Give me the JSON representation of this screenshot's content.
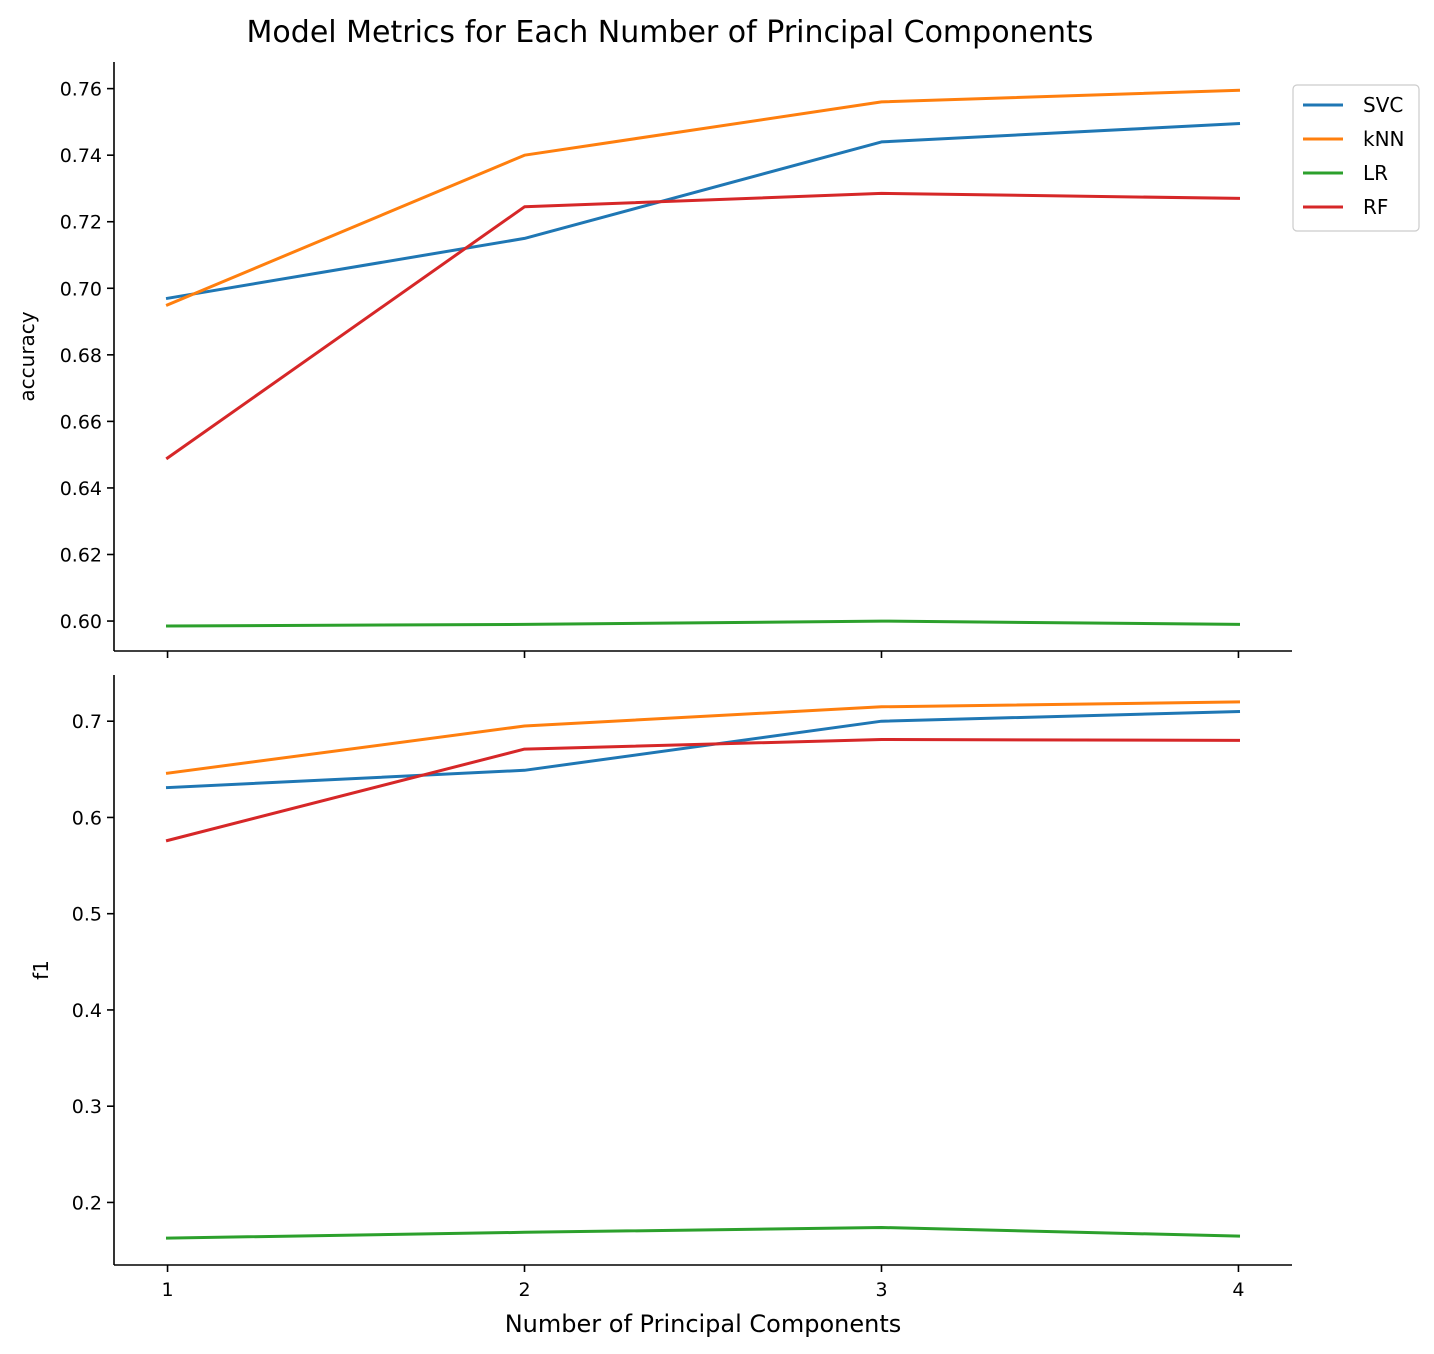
{
  "chart_data": {
    "type": "line",
    "title": "Model Metrics for Each Number of Principal Components",
    "xlabel": "Number of Principal Components",
    "x": [
      1,
      2,
      3,
      4
    ],
    "xticks": [
      "1",
      "2",
      "3",
      "4"
    ],
    "legend": {
      "position": "top-right"
    },
    "grid": false,
    "series_styles": [
      {
        "name": "SVC",
        "color": "#1f77b4"
      },
      {
        "name": "kNN",
        "color": "#ff7f0e"
      },
      {
        "name": "LR",
        "color": "#2ca02c"
      },
      {
        "name": "RF",
        "color": "#d62728"
      }
    ],
    "panels": [
      {
        "ylabel": "accuracy",
        "ylim": [
          0.591,
          0.768
        ],
        "yticks": [
          0.6,
          0.62,
          0.64,
          0.66,
          0.68,
          0.7,
          0.72,
          0.74,
          0.76
        ],
        "ytick_labels": [
          "0.60",
          "0.62",
          "0.64",
          "0.66",
          "0.68",
          "0.70",
          "0.72",
          "0.74",
          "0.76"
        ],
        "series": [
          {
            "name": "SVC",
            "values": [
              0.697,
              0.715,
              0.744,
              0.7495
            ]
          },
          {
            "name": "kNN",
            "values": [
              0.695,
              0.74,
              0.756,
              0.7595
            ]
          },
          {
            "name": "LR",
            "values": [
              0.5985,
              0.599,
              0.6,
              0.599
            ]
          },
          {
            "name": "RF",
            "values": [
              0.649,
              0.7245,
              0.7285,
              0.727
            ]
          }
        ]
      },
      {
        "ylabel": "f1",
        "ylim": [
          0.135,
          0.748
        ],
        "yticks": [
          0.2,
          0.3,
          0.4,
          0.5,
          0.6,
          0.7
        ],
        "ytick_labels": [
          "0.2",
          "0.3",
          "0.4",
          "0.5",
          "0.6",
          "0.7"
        ],
        "series": [
          {
            "name": "SVC",
            "values": [
              0.631,
              0.649,
              0.7,
              0.71
            ]
          },
          {
            "name": "kNN",
            "values": [
              0.646,
              0.695,
              0.715,
              0.72
            ]
          },
          {
            "name": "LR",
            "values": [
              0.163,
              0.169,
              0.174,
              0.165
            ]
          },
          {
            "name": "RF",
            "values": [
              0.576,
              0.671,
              0.681,
              0.68
            ]
          }
        ]
      }
    ]
  }
}
